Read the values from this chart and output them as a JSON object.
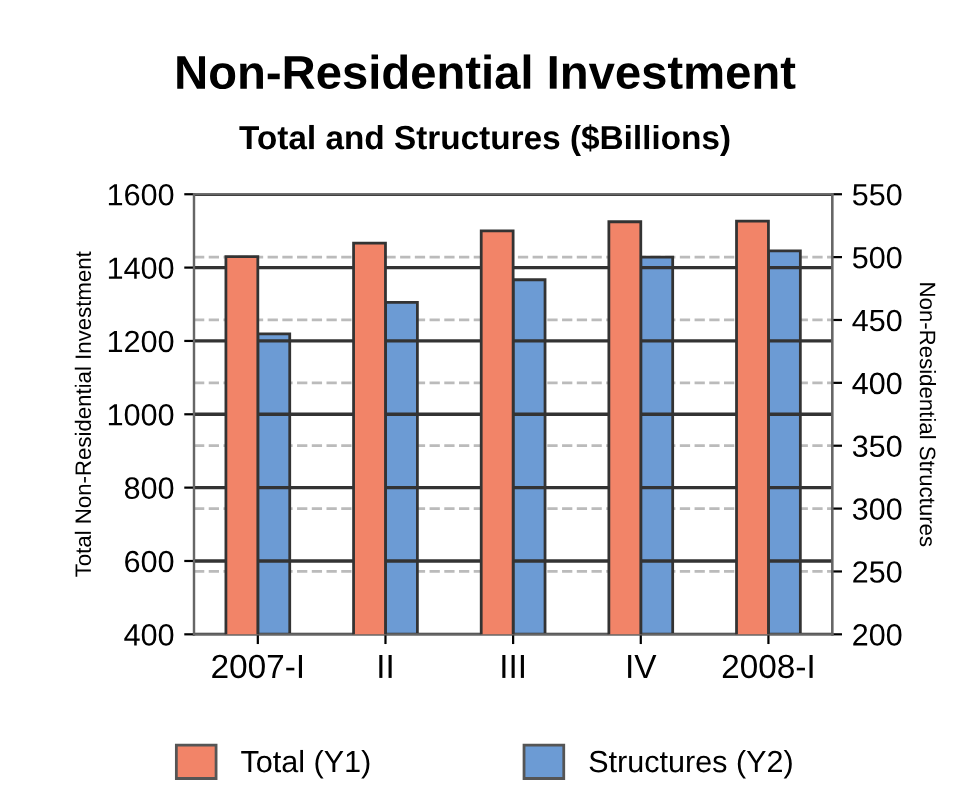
{
  "chart_data": {
    "type": "bar",
    "title": "Non-Residential Investment",
    "subtitle": "Total and Structures ($Billions)",
    "ylabel": "Total Non-Residential Investment",
    "y2label": "Non-Residential Structures",
    "categories": [
      "2007-I",
      "II",
      "III",
      "IV",
      "2008-I"
    ],
    "series": [
      {
        "name": "Total (Y1)",
        "color": "#f28468",
        "values": [
          1430,
          1467,
          1500,
          1525,
          1527
        ]
      },
      {
        "name": "Structures (Y2)",
        "color": "#6c9bd4",
        "axis": "y2",
        "values": [
          439,
          464,
          482,
          500,
          505
        ]
      }
    ],
    "ylim": [
      400,
      1600
    ],
    "yticks": [
      400,
      600,
      800,
      1000,
      1200,
      1400,
      1600
    ],
    "y2lim": [
      200,
      550
    ],
    "y2ticks": [
      200,
      250,
      300,
      350,
      400,
      450,
      500,
      550
    ],
    "grid": true,
    "legend": "bottom"
  }
}
